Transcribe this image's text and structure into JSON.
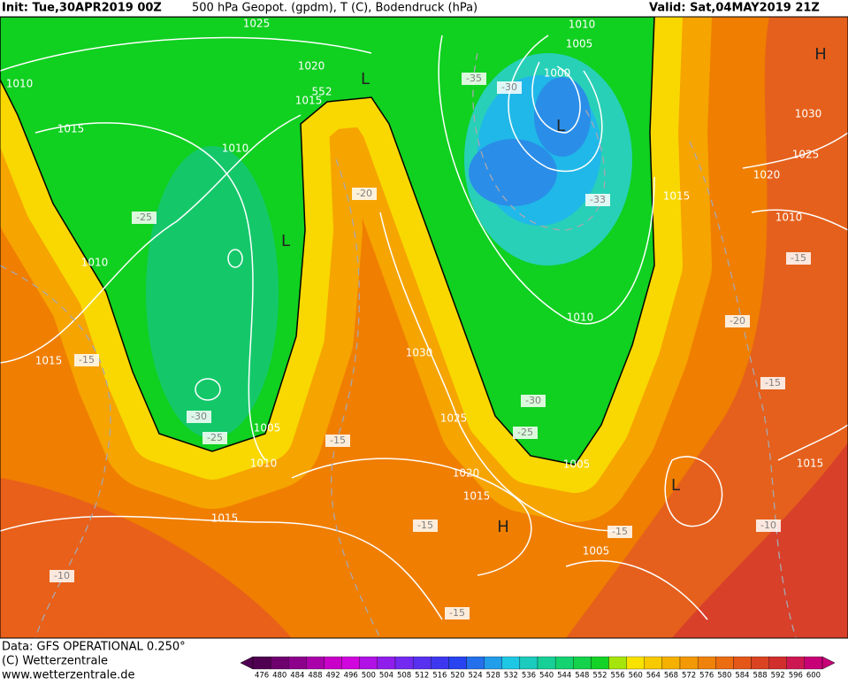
{
  "header": {
    "init": "Init: Tue,30APR2019 00Z",
    "fields": "500 hPa Geopot. (gpdm), T (C), Bodendruck (hPa)",
    "valid": "Valid: Sat,04MAY2019 21Z"
  },
  "map": {
    "isobar_labels": [
      "1025",
      "1010",
      "1005",
      "1000",
      "1010",
      "1020",
      "552",
      "1015",
      "1030",
      "1015",
      "1010",
      "1025",
      "1020",
      "1015",
      "1010",
      "1010",
      "1010",
      "1030",
      "1015",
      "1025",
      "1005",
      "1010",
      "1005",
      "1015",
      "1020",
      "1015",
      "1015",
      "1005"
    ],
    "temperature_labels": [
      "-35",
      "-30",
      "-20",
      "-33",
      "-25",
      "-15",
      "-20",
      "-15",
      "-15",
      "-30",
      "-30",
      "-25",
      "-25",
      "-15",
      "-15",
      "-10",
      "-15",
      "-10",
      "-15"
    ],
    "pressure_centers": [
      "H",
      "L",
      "L",
      "L",
      "L",
      "H"
    ]
  },
  "footer": {
    "source": "Data: GFS OPERATIONAL 0.250°",
    "copyright": "(C) Wetterzentrale",
    "url": "www.wetterzentrale.de"
  },
  "colorbar": {
    "ticks": [
      476,
      480,
      484,
      488,
      492,
      496,
      500,
      504,
      508,
      512,
      516,
      520,
      524,
      528,
      532,
      536,
      540,
      544,
      548,
      552,
      556,
      560,
      564,
      568,
      572,
      576,
      580,
      584,
      588,
      592,
      596,
      600
    ]
  }
}
